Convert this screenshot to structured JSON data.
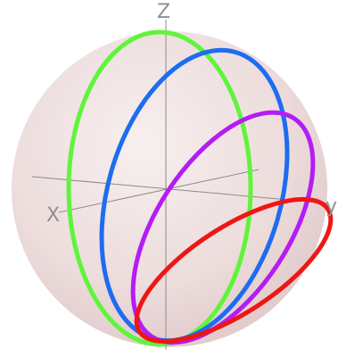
{
  "axes": {
    "x_label": "X",
    "y_label": "y",
    "z_label": "Z"
  },
  "colors": {
    "sphere_fill": "#efe0e0",
    "axis_line": "#8c8c8c",
    "axis_label": "#909090",
    "ring_green": "#5ff53a",
    "ring_blue": "#1e6cf0",
    "ring_purple": "#b41cf5",
    "ring_red": "#ee1616"
  },
  "rings": [
    {
      "name": "ring-green",
      "color_key": "ring_green"
    },
    {
      "name": "ring-blue",
      "color_key": "ring_blue"
    },
    {
      "name": "ring-purple",
      "color_key": "ring_purple"
    },
    {
      "name": "ring-red",
      "color_key": "ring_red"
    }
  ]
}
